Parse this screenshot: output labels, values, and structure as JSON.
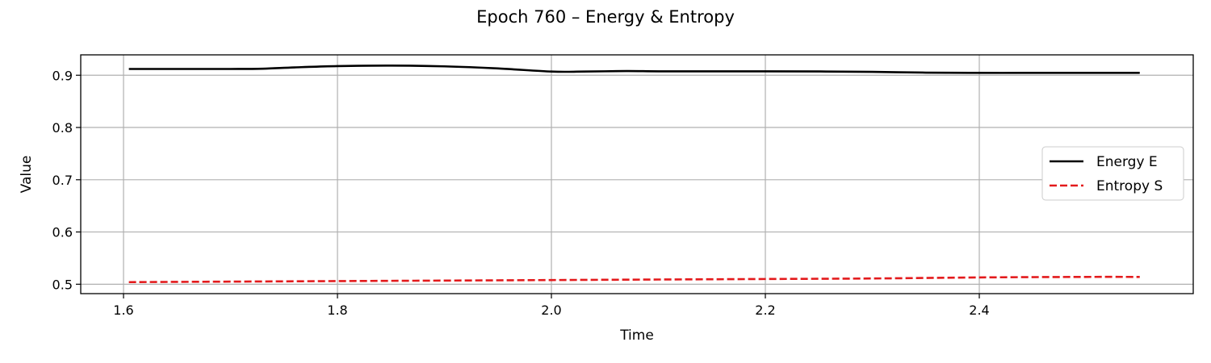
{
  "chart_data": {
    "type": "line",
    "title": "Epoch 760 – Energy & Entropy",
    "xlabel": "Time",
    "ylabel": "Value",
    "xlim": [
      1.56,
      2.6
    ],
    "ylim": [
      0.482,
      0.939
    ],
    "xticks": [
      1.6,
      1.8,
      2.0,
      2.2,
      2.4
    ],
    "xtick_labels": [
      "1.6",
      "1.8",
      "2.0",
      "2.2",
      "2.4"
    ],
    "yticks": [
      0.5,
      0.6,
      0.7,
      0.8,
      0.9
    ],
    "ytick_labels": [
      "0.5",
      "0.6",
      "0.7",
      "0.8",
      "0.9"
    ],
    "grid": true,
    "legend_position": "center-right",
    "series": [
      {
        "name": "Energy E",
        "color": "#000000",
        "style": "solid",
        "x": [
          1.605,
          1.65,
          1.7,
          1.73,
          1.76,
          1.8,
          1.85,
          1.9,
          1.95,
          2.0,
          2.03,
          2.07,
          2.1,
          2.15,
          2.2,
          2.25,
          2.3,
          2.35,
          2.4,
          2.45,
          2.5,
          2.55
        ],
        "y": [
          0.912,
          0.912,
          0.912,
          0.9125,
          0.915,
          0.9175,
          0.9185,
          0.917,
          0.913,
          0.907,
          0.907,
          0.908,
          0.9075,
          0.9075,
          0.9075,
          0.9072,
          0.9065,
          0.905,
          0.9045,
          0.9045,
          0.9045,
          0.9045
        ]
      },
      {
        "name": "Entropy S",
        "color": "#e31a1c",
        "style": "dashed",
        "x": [
          1.605,
          1.7,
          1.8,
          1.9,
          2.0,
          2.1,
          2.2,
          2.3,
          2.4,
          2.5,
          2.55
        ],
        "y": [
          0.504,
          0.505,
          0.506,
          0.507,
          0.508,
          0.509,
          0.51,
          0.511,
          0.513,
          0.514,
          0.514
        ]
      }
    ]
  }
}
